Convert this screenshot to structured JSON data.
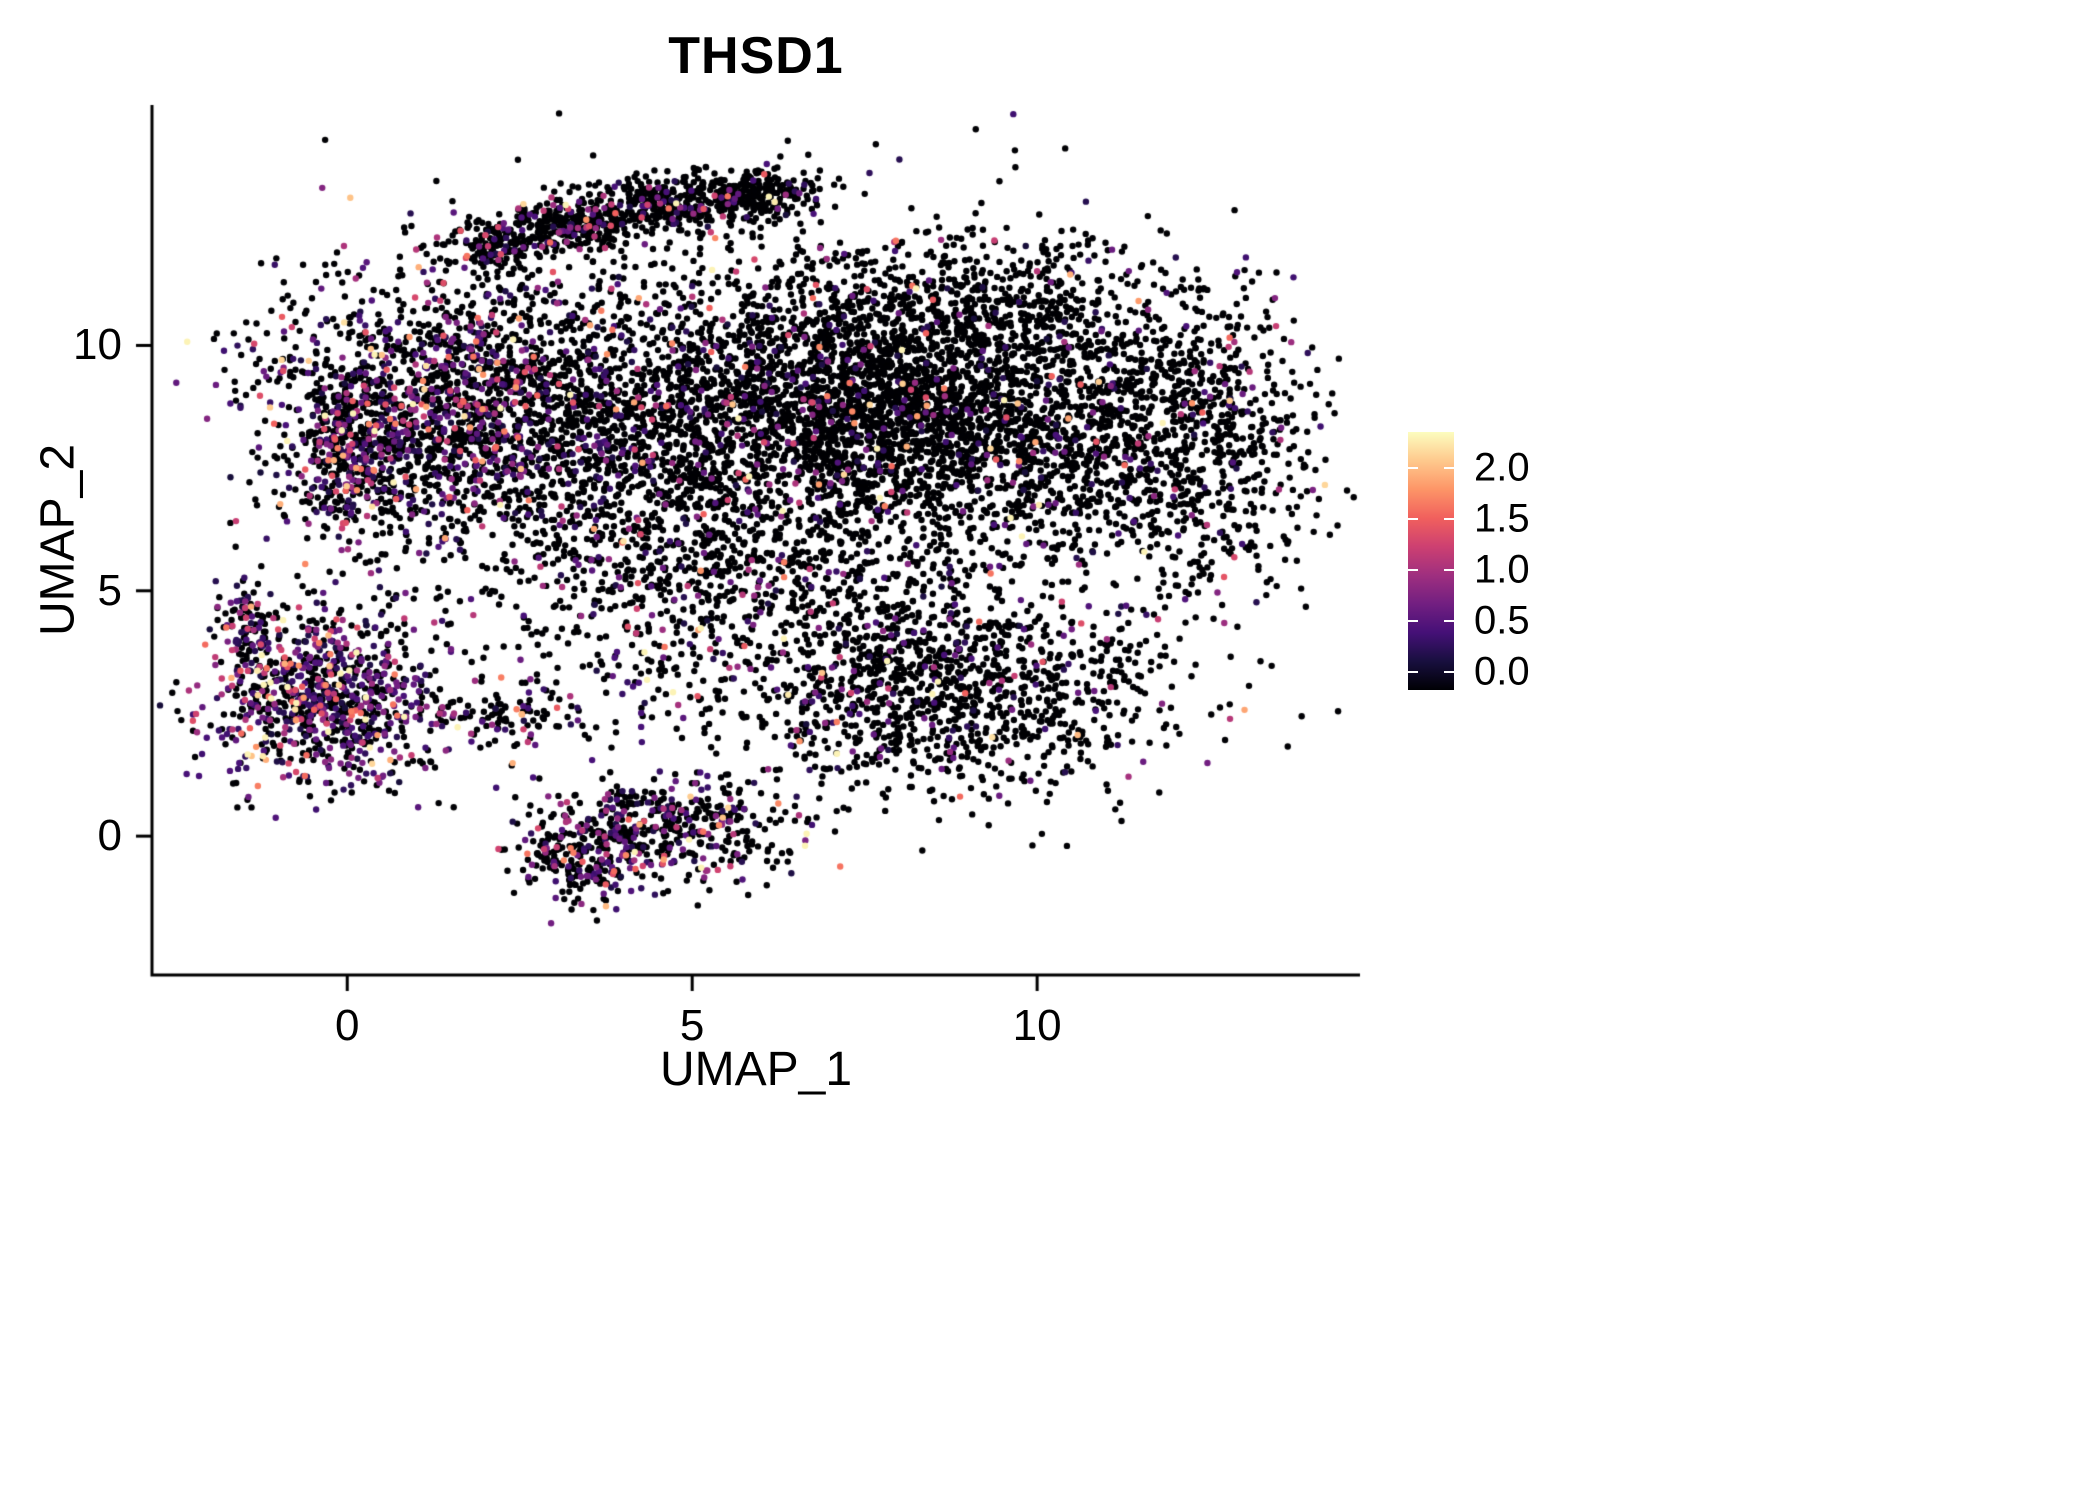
{
  "figure": {
    "background": "#FFFFFF"
  },
  "chart_data": {
    "type": "scatter",
    "title": "THSD1",
    "subtitle": "",
    "xlabel": "UMAP_1",
    "ylabel": "UMAP_2",
    "xlim": [
      -2.83,
      14.68
    ],
    "ylim": [
      -2.83,
      14.9
    ],
    "x_ticks": [
      0,
      5,
      10
    ],
    "x_tick_labels": [
      "0",
      "5",
      "10"
    ],
    "y_ticks": [
      0,
      5,
      10
    ],
    "y_tick_labels": [
      "0",
      "5",
      "10"
    ],
    "grid": false,
    "legend": {
      "type": "colorbar",
      "position": "right",
      "ticks": [
        2.0,
        1.5,
        1.0,
        0.5,
        0.0
      ],
      "tick_labels": [
        "2.0",
        "1.5",
        "1.0",
        "0.5",
        "0.0"
      ],
      "value_range": [
        0,
        2.3
      ],
      "colormap": "magma",
      "colors": [
        "#000004",
        "#180F3E",
        "#451077",
        "#721F81",
        "#9F2F7F",
        "#CD4071",
        "#F1605D",
        "#FD9567",
        "#FEC98D",
        "#FCFDBF"
      ]
    },
    "style": {
      "point_radius_px": 3.2,
      "axis_color": "#000000",
      "text_color": "#000000",
      "zero_expression_color": "#000004"
    },
    "clusters": [
      {
        "name": "top-arm-1",
        "cx": 2.1,
        "cy": 12.0,
        "sx": 0.35,
        "sy": 0.28,
        "n": 160,
        "expr_frac": 0.18
      },
      {
        "name": "top-arm-2",
        "cx": 3.2,
        "cy": 12.45,
        "sx": 0.5,
        "sy": 0.26,
        "n": 260,
        "expr_frac": 0.15
      },
      {
        "name": "top-arm-3",
        "cx": 4.5,
        "cy": 12.85,
        "sx": 0.55,
        "sy": 0.27,
        "n": 300,
        "expr_frac": 0.12
      },
      {
        "name": "top-arm-4",
        "cx": 5.8,
        "cy": 13.1,
        "sx": 0.5,
        "sy": 0.28,
        "n": 260,
        "expr_frac": 0.1
      },
      {
        "name": "upper-left-lobe",
        "cx": 1.3,
        "cy": 8.7,
        "sx": 1.25,
        "sy": 1.35,
        "n": 1500,
        "expr_frac": 0.32
      },
      {
        "name": "left-edge",
        "cx": -0.1,
        "cy": 7.8,
        "sx": 0.45,
        "sy": 0.85,
        "n": 280,
        "expr_frac": 0.45
      },
      {
        "name": "mid-lobe",
        "cx": 4.4,
        "cy": 8.4,
        "sx": 1.5,
        "sy": 1.6,
        "n": 1500,
        "expr_frac": 0.16
      },
      {
        "name": "central-dense",
        "cx": 7.7,
        "cy": 8.7,
        "sx": 1.35,
        "sy": 1.25,
        "n": 1900,
        "expr_frac": 0.06
      },
      {
        "name": "right-lobe",
        "cx": 10.2,
        "cy": 8.5,
        "sx": 1.2,
        "sy": 1.4,
        "n": 1000,
        "expr_frac": 0.08
      },
      {
        "name": "far-right-lobe",
        "cx": 12.4,
        "cy": 8.0,
        "sx": 0.85,
        "sy": 1.5,
        "n": 650,
        "expr_frac": 0.12
      },
      {
        "name": "top-right-band",
        "cx": 8.6,
        "cy": 10.9,
        "sx": 1.6,
        "sy": 0.7,
        "n": 450,
        "expr_frac": 0.07
      },
      {
        "name": "halo",
        "cx": 6.0,
        "cy": 8.5,
        "sx": 3.2,
        "sy": 2.3,
        "n": 700,
        "expr_frac": 0.1
      },
      {
        "name": "lower-right-lump",
        "cx": 8.8,
        "cy": 3.0,
        "sx": 1.5,
        "sy": 1.0,
        "n": 1150,
        "expr_frac": 0.1
      },
      {
        "name": "lower-mid-band",
        "cx": 5.2,
        "cy": 3.9,
        "sx": 1.8,
        "sy": 0.9,
        "n": 300,
        "expr_frac": 0.2
      },
      {
        "name": "mid-bridge",
        "cx": 6.3,
        "cy": 5.4,
        "sx": 2.4,
        "sy": 0.6,
        "n": 350,
        "expr_frac": 0.12
      },
      {
        "name": "left-cluster",
        "cx": -0.35,
        "cy": 2.8,
        "sx": 0.85,
        "sy": 0.9,
        "n": 900,
        "expr_frac": 0.5
      },
      {
        "name": "left-cluster-arm",
        "cx": -1.45,
        "cy": 4.35,
        "sx": 0.22,
        "sy": 0.38,
        "n": 80,
        "expr_frac": 0.5
      },
      {
        "name": "left-trail",
        "cx": 2.1,
        "cy": 2.4,
        "sx": 0.8,
        "sy": 0.3,
        "n": 120,
        "expr_frac": 0.25
      },
      {
        "name": "bottom-cluster",
        "cx": 4.7,
        "cy": 0.15,
        "sx": 1.0,
        "sy": 0.55,
        "n": 450,
        "expr_frac": 0.3
      },
      {
        "name": "bottom-cluster-left",
        "cx": 3.4,
        "cy": -0.5,
        "sx": 0.45,
        "sy": 0.45,
        "n": 200,
        "expr_frac": 0.35
      },
      {
        "name": "scatter-noise",
        "cx": 6.0,
        "cy": 7.5,
        "sx": 4.2,
        "sy": 3.2,
        "n": 250,
        "expr_frac": 0.12
      }
    ]
  }
}
